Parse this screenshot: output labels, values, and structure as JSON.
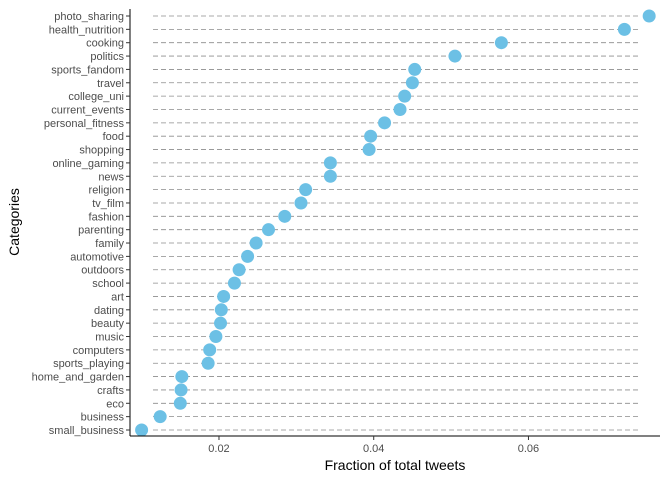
{
  "chart_data": {
    "type": "scatter",
    "xlabel": "Fraction of total tweets",
    "ylabel": "Categories",
    "xlim": [
      0.0085,
      0.077
    ],
    "x_ticks": [
      0.02,
      0.04,
      0.06
    ],
    "x_tick_labels": [
      "0.02",
      "0.04",
      "0.06"
    ],
    "grid": false,
    "guide_lines": "dashed",
    "point_color": "#6CC0E5",
    "categories": [
      "photo_sharing",
      "health_nutrition",
      "cooking",
      "politics",
      "sports_fandom",
      "travel",
      "college_uni",
      "current_events",
      "personal_fitness",
      "food",
      "shopping",
      "online_gaming",
      "news",
      "religion",
      "tv_film",
      "fashion",
      "parenting",
      "family",
      "automotive",
      "outdoors",
      "school",
      "art",
      "dating",
      "beauty",
      "music",
      "computers",
      "sports_playing",
      "home_and_garden",
      "crafts",
      "eco",
      "business",
      "small_business"
    ],
    "values": [
      0.0756,
      0.0724,
      0.0565,
      0.0505,
      0.0453,
      0.045,
      0.044,
      0.0434,
      0.0414,
      0.0396,
      0.0394,
      0.0344,
      0.0344,
      0.0312,
      0.0306,
      0.0285,
      0.0264,
      0.0248,
      0.0237,
      0.0226,
      0.022,
      0.0206,
      0.0203,
      0.0202,
      0.0196,
      0.0188,
      0.0186,
      0.0152,
      0.0151,
      0.015,
      0.0124,
      0.01
    ]
  }
}
